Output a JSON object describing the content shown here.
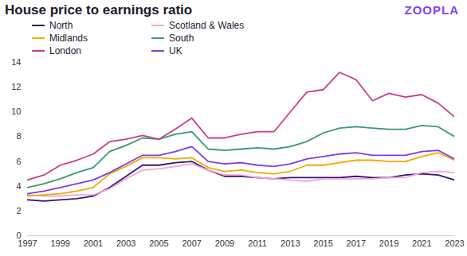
{
  "chart_data": {
    "type": "line",
    "title": "House price to earnings ratio",
    "logo": "ZOOPLA",
    "x": [
      1997,
      1998,
      1999,
      2000,
      2001,
      2002,
      2003,
      2004,
      2005,
      2006,
      2007,
      2008,
      2009,
      2010,
      2011,
      2012,
      2013,
      2014,
      2015,
      2016,
      2017,
      2018,
      2019,
      2020,
      2021,
      2022,
      2023
    ],
    "series": [
      {
        "name": "North",
        "color": "#2d1b6b",
        "values": [
          2.9,
          2.8,
          2.9,
          3.0,
          3.2,
          3.9,
          4.8,
          5.7,
          5.7,
          5.9,
          6.0,
          5.3,
          4.8,
          4.8,
          4.7,
          4.6,
          4.7,
          4.7,
          4.7,
          4.7,
          4.8,
          4.7,
          4.7,
          4.9,
          5.0,
          4.9,
          4.5
        ]
      },
      {
        "name": "Scotland & Wales",
        "color": "#f4a3dc",
        "values": [
          3.3,
          3.2,
          3.2,
          3.3,
          3.3,
          3.8,
          4.6,
          5.3,
          5.4,
          5.6,
          5.8,
          5.3,
          4.9,
          4.9,
          4.7,
          4.6,
          4.5,
          4.4,
          4.6,
          4.6,
          4.6,
          4.6,
          4.7,
          4.7,
          5.1,
          5.2,
          5.1
        ]
      },
      {
        "name": "Midlands",
        "color": "#f5a800",
        "values": [
          3.2,
          3.3,
          3.4,
          3.6,
          3.9,
          5.0,
          5.6,
          6.3,
          6.3,
          6.2,
          6.3,
          5.5,
          5.2,
          5.3,
          5.1,
          5.0,
          5.2,
          5.7,
          5.7,
          5.9,
          6.1,
          6.1,
          6.0,
          6.0,
          6.4,
          6.7,
          6.1
        ]
      },
      {
        "name": "South",
        "color": "#3a9a6a",
        "values": [
          3.9,
          4.2,
          4.6,
          5.1,
          5.5,
          6.8,
          7.3,
          7.9,
          7.8,
          8.2,
          8.4,
          7.0,
          6.9,
          7.0,
          7.1,
          7.0,
          7.2,
          7.6,
          8.3,
          8.7,
          8.8,
          8.7,
          8.6,
          8.6,
          8.9,
          8.8,
          8.0
        ]
      },
      {
        "name": "London",
        "color": "#c83c8c",
        "values": [
          4.5,
          4.9,
          5.7,
          6.1,
          6.6,
          7.6,
          7.8,
          8.1,
          7.8,
          8.6,
          9.5,
          7.9,
          7.9,
          8.2,
          8.4,
          8.4,
          10.0,
          11.6,
          11.8,
          13.2,
          12.6,
          10.9,
          11.5,
          11.2,
          11.4,
          10.7,
          9.6
        ]
      },
      {
        "name": "UK",
        "color": "#7b3fe4",
        "values": [
          3.4,
          3.6,
          3.9,
          4.2,
          4.5,
          5.1,
          5.8,
          6.5,
          6.5,
          6.8,
          7.2,
          6.0,
          5.8,
          5.9,
          5.7,
          5.6,
          5.8,
          6.2,
          6.4,
          6.6,
          6.7,
          6.5,
          6.5,
          6.5,
          6.8,
          6.9,
          6.2
        ]
      }
    ],
    "xlim": [
      1997,
      2023
    ],
    "xticks": [
      1997,
      1999,
      2001,
      2003,
      2005,
      2007,
      2009,
      2011,
      2013,
      2015,
      2017,
      2019,
      2021,
      2023
    ],
    "ylim": [
      0,
      14
    ],
    "yticks": [
      0,
      2,
      4,
      6,
      8,
      10,
      12,
      14
    ],
    "grid": false,
    "legend": "top-left"
  }
}
